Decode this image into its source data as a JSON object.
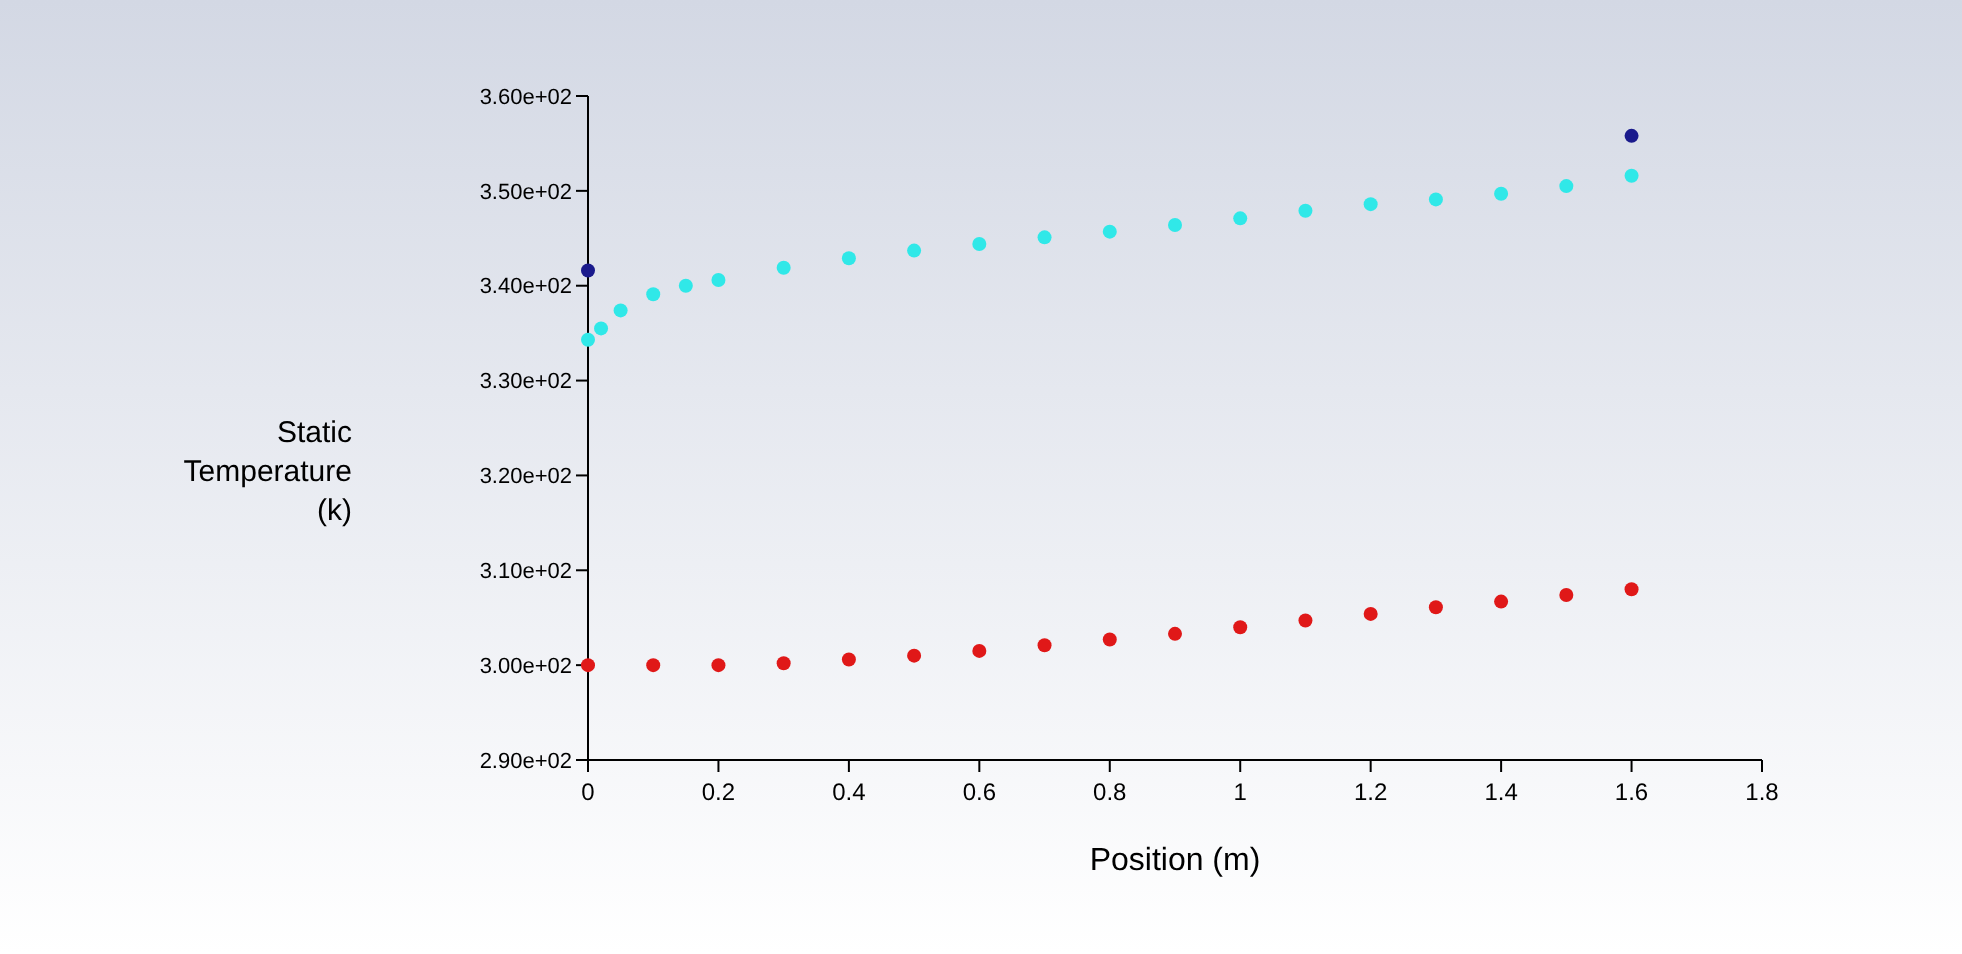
{
  "chart_data": {
    "type": "scatter",
    "xlabel": "Position (m)",
    "ylabel": "Static\nTemperature\n(k)",
    "marker": "circle",
    "grid": false,
    "xlim": [
      0,
      1.8
    ],
    "xticks": [
      0,
      0.2,
      0.4,
      0.6,
      0.8,
      1,
      1.2,
      1.4,
      1.6,
      1.8
    ],
    "ylim": [
      290,
      360
    ],
    "yticks": [
      {
        "value": 290,
        "label": "2.90e+02"
      },
      {
        "value": 300,
        "label": "3.00e+02"
      },
      {
        "value": 310,
        "label": "3.10e+02"
      },
      {
        "value": 320,
        "label": "3.20e+02"
      },
      {
        "value": 330,
        "label": "3.30e+02"
      },
      {
        "value": 340,
        "label": "3.40e+02"
      },
      {
        "value": 350,
        "label": "3.50e+02"
      },
      {
        "value": 360,
        "label": "3.60e+02"
      }
    ],
    "series": [
      {
        "color": "#e01818",
        "x": [
          0,
          0.1,
          0.2,
          0.3,
          0.4,
          0.5,
          0.6,
          0.7,
          0.8,
          0.9,
          1,
          1.1,
          1.2,
          1.3,
          1.4,
          1.5,
          1.6
        ],
        "values": [
          300,
          300,
          300,
          300.2,
          300.6,
          301,
          301.5,
          302.1,
          302.7,
          303.3,
          304,
          304.7,
          305.4,
          306.1,
          306.7,
          307.4,
          308
        ]
      },
      {
        "color": "#1a1a8c",
        "x": [
          0,
          1.6
        ],
        "values": [
          341.6,
          355.8
        ]
      },
      {
        "color": "#30e8e8",
        "x": [
          0,
          0.02,
          0.05,
          0.1,
          0.15,
          0.2,
          0.3,
          0.4,
          0.5,
          0.6,
          0.7,
          0.8,
          0.9,
          1,
          1.1,
          1.2,
          1.3,
          1.4,
          1.5,
          1.6
        ],
        "values": [
          334.3,
          335.5,
          337.4,
          339.1,
          340,
          340.6,
          341.9,
          342.9,
          343.7,
          344.4,
          345.1,
          345.7,
          346.4,
          347.1,
          347.9,
          348.6,
          349.1,
          349.7,
          350.5,
          351.6
        ]
      }
    ]
  }
}
